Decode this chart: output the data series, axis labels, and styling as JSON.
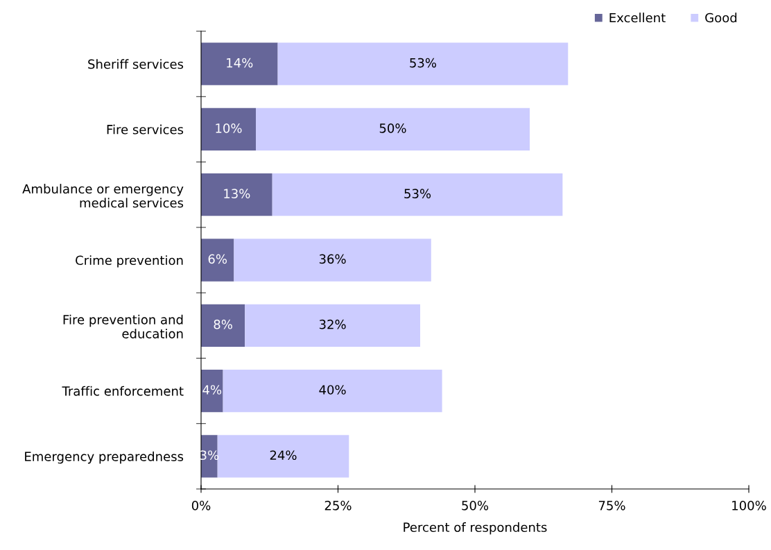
{
  "chart_data": {
    "type": "bar",
    "orientation": "horizontal",
    "stacked": true,
    "categories": [
      "Sheriff services",
      "Fire services",
      "Ambulance or emergency\nmedical services",
      "Crime prevention",
      "Fire prevention and\neducation",
      "Traffic enforcement",
      "Emergency preparedness"
    ],
    "series": [
      {
        "name": "Excellent",
        "color": "#666699",
        "values": [
          14,
          10,
          13,
          6,
          8,
          4,
          3
        ],
        "value_labels": [
          "14%",
          "10%",
          "13%",
          "6%",
          "8%",
          "4%",
          "3%"
        ]
      },
      {
        "name": "Good",
        "color": "#ccccff",
        "values": [
          53,
          50,
          53,
          36,
          32,
          40,
          24
        ],
        "value_labels": [
          "53%",
          "50%",
          "53%",
          "36%",
          "32%",
          "40%",
          "24%"
        ]
      }
    ],
    "xlabel": "Percent of respondents",
    "xlim": [
      0,
      100
    ],
    "xticks": [
      {
        "value": 0,
        "label": "0%"
      },
      {
        "value": 25,
        "label": "25%"
      },
      {
        "value": 50,
        "label": "50%"
      },
      {
        "value": 75,
        "label": "75%"
      },
      {
        "value": 100,
        "label": "100%"
      }
    ],
    "legend": "top right",
    "grid": false
  }
}
